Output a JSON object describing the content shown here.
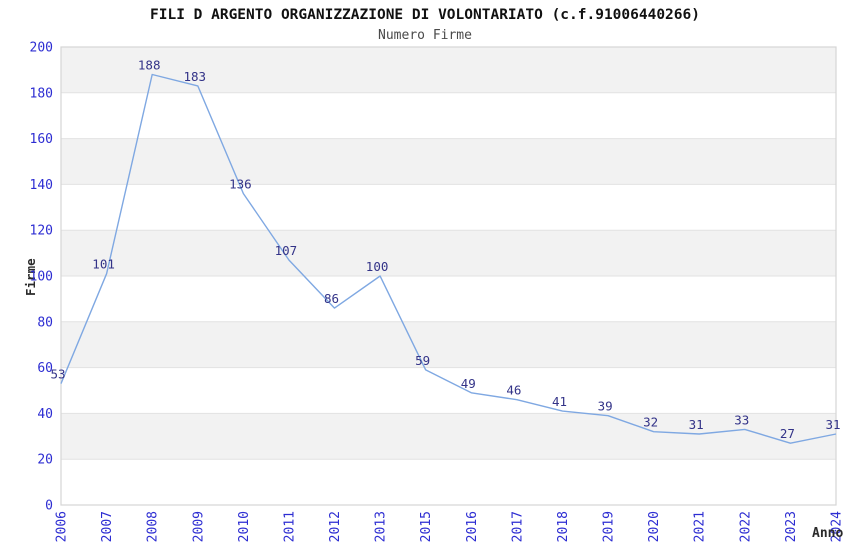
{
  "chart_data": {
    "type": "line",
    "title": "FILI D ARGENTO ORGANIZZAZIONE DI VOLONTARIATO (c.f.91006440266)",
    "subtitle": "Numero Firme",
    "xlabel": "Anno",
    "ylabel": "Firme",
    "categories": [
      "2006",
      "2007",
      "2008",
      "2009",
      "2010",
      "2011",
      "2012",
      "2013",
      "2015",
      "2016",
      "2017",
      "2018",
      "2019",
      "2020",
      "2021",
      "2022",
      "2023",
      "2024"
    ],
    "values": [
      53,
      101,
      188,
      183,
      136,
      107,
      86,
      100,
      59,
      49,
      46,
      41,
      39,
      32,
      31,
      33,
      27,
      31
    ],
    "ylim": [
      0,
      200
    ],
    "ytick_step": 20,
    "grid": true,
    "banded_background": true,
    "legend_position": "none",
    "data_labels_visible": true,
    "colors": {
      "line": "#7fa8e2",
      "data_label": "#333388",
      "tick_label": "#2d2dd2",
      "band": "#f2f2f2",
      "grid": "#e2e2e2",
      "border": "#d6d6d6",
      "title": "#111111",
      "subtitle": "#4a4a4a",
      "axis_title": "#2b2b2b",
      "background": "#ffffff"
    }
  }
}
